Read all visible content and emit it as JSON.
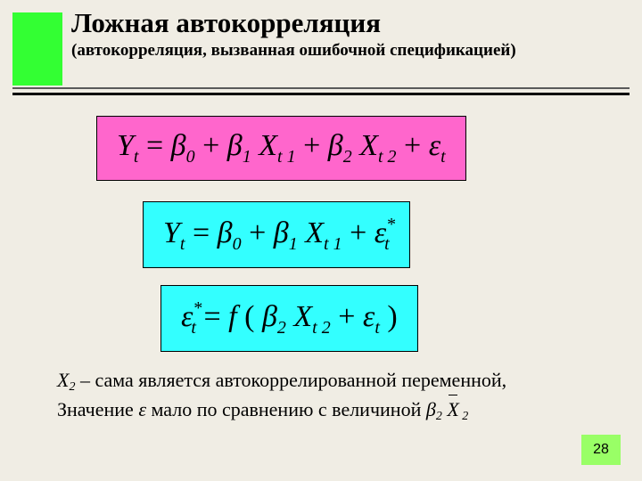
{
  "header": {
    "title": "Ложная автокорреляция",
    "subtitle": "(автокорреляция, вызванная ошибочной спецификацией)"
  },
  "equations": {
    "eq1": {
      "bg": "#ff66cc",
      "parts": {
        "Y": "Y",
        "t1": "t",
        "eq": " = ",
        "b0": "β",
        "s0": "0",
        "plus1": " + ",
        "b1": "β",
        "s1": "1",
        "X1": "X",
        "xt1": "t 1",
        "plus2": " + ",
        "b2": "β",
        "s2": "2",
        "X2": "X",
        "xt2": "t 2",
        "plus3": " + ",
        "eps": "ε",
        "et": "t"
      }
    },
    "eq2": {
      "bg": "#33ffff",
      "parts": {
        "Y": "Y",
        "t1": "t",
        "eq": " = ",
        "b0": "β",
        "s0": "0",
        "plus1": " + ",
        "b1": "β",
        "s1": "1",
        "X1": "X",
        "xt1": "t 1",
        "plus2": " + ",
        "eps": "ε",
        "star": "*",
        "et": "t"
      }
    },
    "eq3": {
      "bg": "#33ffff",
      "parts": {
        "eps": "ε",
        "star": "*",
        "et": "t",
        "eq": " = ",
        "f": "f",
        "lp": " (",
        "b2": "β",
        "s2": "2",
        "X2": "X",
        "xt2": "t 2",
        "plus": " + ",
        "eps2": "ε",
        "et2": "t",
        "rp": " )"
      }
    }
  },
  "bottom": {
    "line1_a": "X",
    "line1_a_sub": "2",
    "line1_b": " – сама является автокоррелированной переменной,",
    "line2_a": "Значение ",
    "line2_eps": "ε",
    "line2_b": "  мало по сравнению с величиной  ",
    "beta": "β",
    "beta_sub": "2",
    "Xbar": "X",
    "Xbar_sub": " 2"
  },
  "page": "28"
}
